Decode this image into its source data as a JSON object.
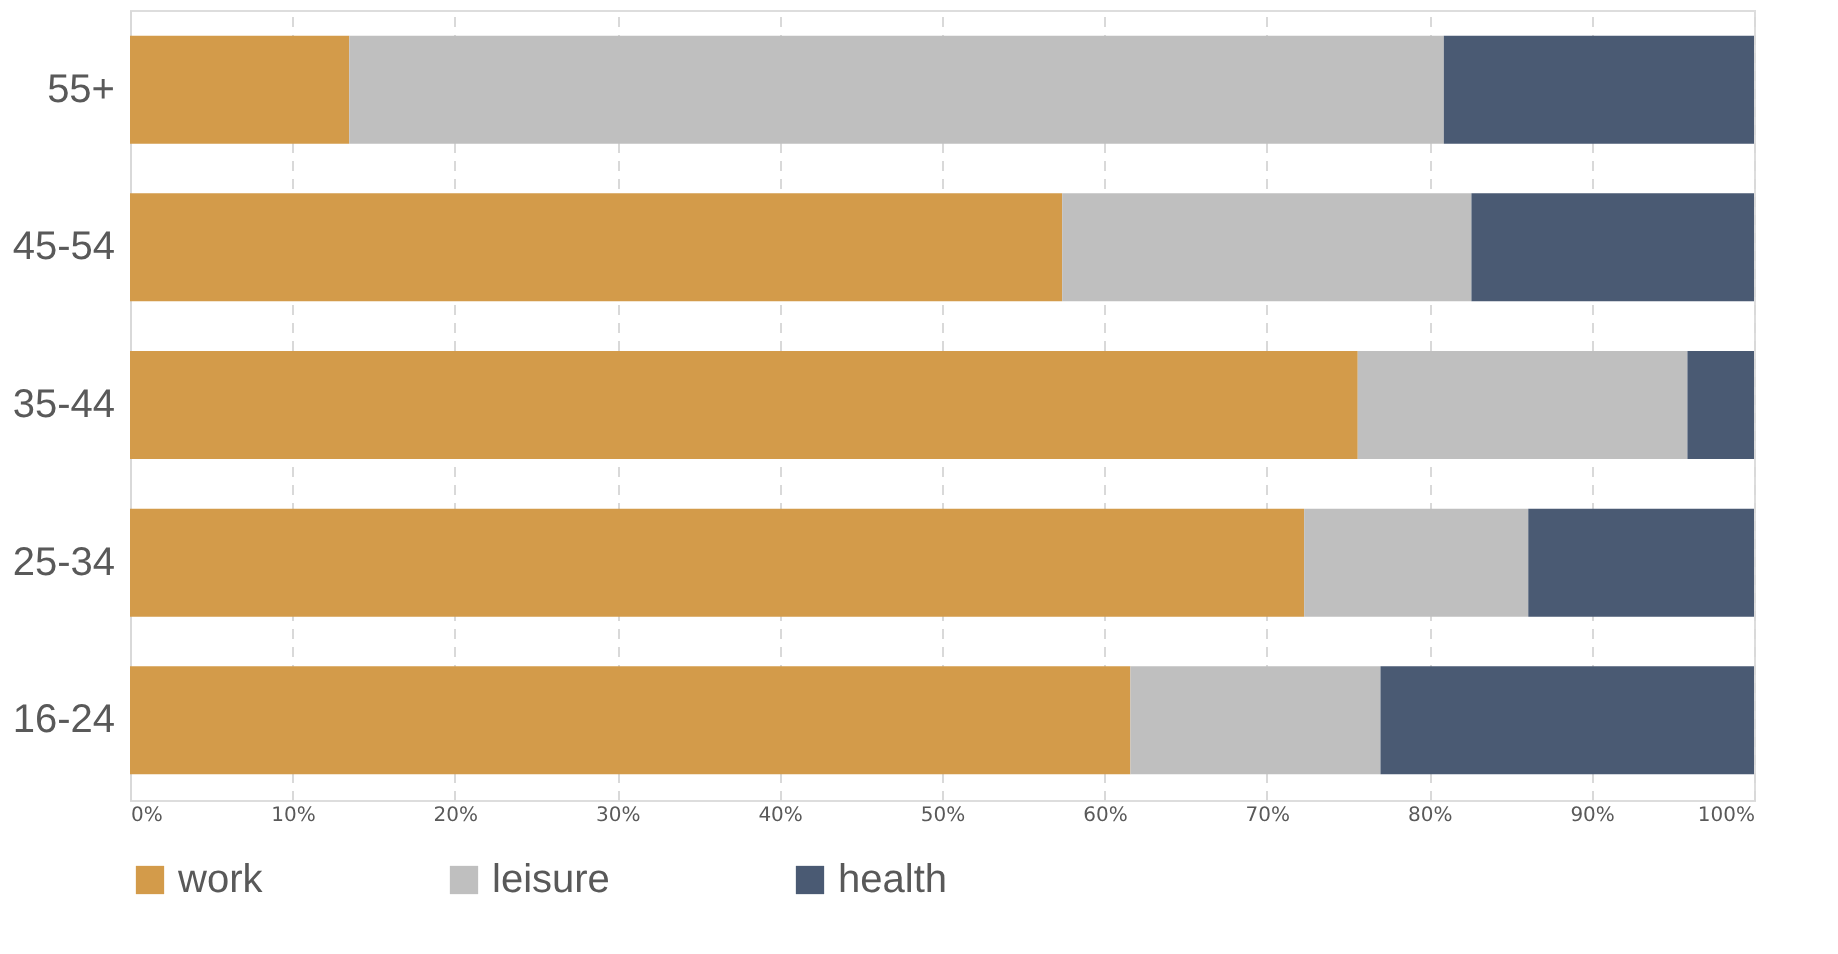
{
  "chart_data": {
    "type": "bar",
    "orientation": "horizontal",
    "stacked": true,
    "categories": [
      "55+",
      "45-54",
      "35-44",
      "25-34",
      "16-24"
    ],
    "series": [
      {
        "name": "work",
        "color": "#d39b4a",
        "values": [
          13.5,
          57.4,
          75.6,
          72.3,
          61.6
        ]
      },
      {
        "name": "leisure",
        "color": "#bfbfbf",
        "values": [
          67.4,
          25.2,
          20.3,
          13.8,
          15.4
        ]
      },
      {
        "name": "health",
        "color": "#4a5a73",
        "values": [
          19.1,
          17.4,
          4.1,
          13.9,
          23.0
        ]
      }
    ],
    "xlim": [
      0,
      100
    ],
    "xticks": [
      {
        "value": 0,
        "label": "0%"
      },
      {
        "value": 10,
        "label": "10%"
      },
      {
        "value": 20,
        "label": "20%"
      },
      {
        "value": 30,
        "label": "30%"
      },
      {
        "value": 40,
        "label": "40%"
      },
      {
        "value": 50,
        "label": "50%"
      },
      {
        "value": 60,
        "label": "60%"
      },
      {
        "value": 70,
        "label": "70%"
      },
      {
        "value": 80,
        "label": "80%"
      },
      {
        "value": 90,
        "label": "90%"
      },
      {
        "value": 100,
        "label": "100%"
      }
    ],
    "grid": "x",
    "legend": "bottom"
  }
}
